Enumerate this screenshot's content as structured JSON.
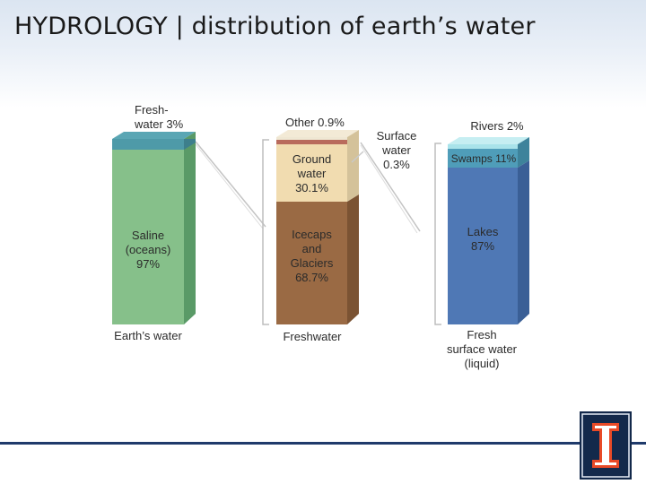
{
  "slide": {
    "title": "HYDROLOGY | distribution of earth’s water"
  },
  "diagram": {
    "colors": {
      "saline": "#86c08a",
      "freshwater_cap": "#4e9aa8",
      "ground_water": "#f1dcb0",
      "icecaps": "#9a6a44",
      "other": "#b96b5c",
      "surface_water": "#efe7d3",
      "lakes": "#4f78b5",
      "swamps": "#4f9db9",
      "rivers": "#a9e3ea",
      "header_band": "#dbe5f1",
      "rule_color": "#1f3a6b"
    },
    "columns": [
      {
        "id": "earths-water",
        "caption": "Earth’s water",
        "segments": [
          {
            "label_line1": "Fresh-",
            "label_line2": "water 3%",
            "percent": 3
          },
          {
            "label_line1": "Saline",
            "label_line2": "(oceans)",
            "label_line3": "97%",
            "percent": 97
          }
        ]
      },
      {
        "id": "freshwater",
        "caption": "Freshwater",
        "segments": [
          {
            "label_line1": "Other 0.9%",
            "percent": 0.9
          },
          {
            "label_line1": "Surface",
            "label_line2": "water",
            "label_line3": "0.3%",
            "percent": 0.3
          },
          {
            "label_line1": "Ground",
            "label_line2": "water",
            "label_line3": "30.1%",
            "percent": 30.1
          },
          {
            "label_line1": "Icecaps",
            "label_line2": "and",
            "label_line3": "Glaciers",
            "label_line4": "68.7%",
            "percent": 68.7
          }
        ]
      },
      {
        "id": "fresh-surface-water",
        "caption_line1": "Fresh",
        "caption_line2": "surface water",
        "caption_line3": "(liquid)",
        "segments": [
          {
            "label_line1": "Rivers 2%",
            "percent": 2
          },
          {
            "label_line1": "Swamps 11%",
            "percent": 11
          },
          {
            "label_line1": "Lakes",
            "label_line2": "87%",
            "percent": 87
          }
        ]
      }
    ]
  }
}
